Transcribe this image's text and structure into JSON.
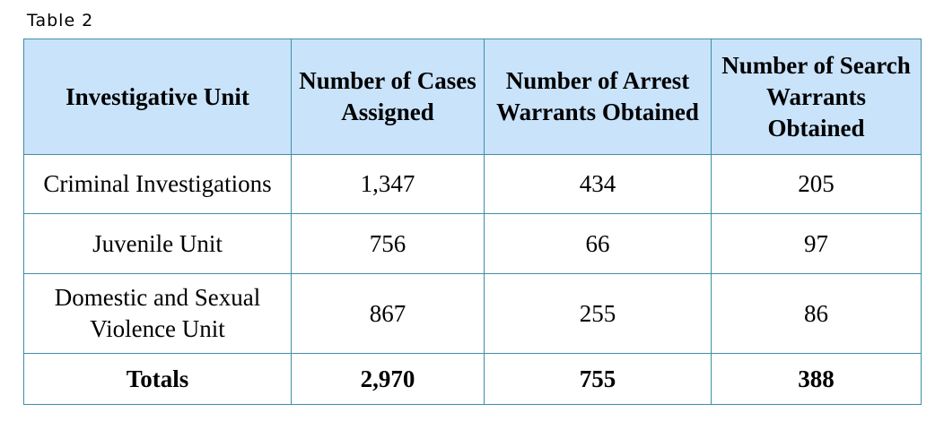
{
  "caption": "Table 2",
  "table": {
    "headers": [
      "Investigative Unit",
      "Number of Cases Assigned",
      "Number of Arrest Warrants Obtained",
      "Number of Search Warrants Obtained"
    ],
    "rows": [
      {
        "unit": "Criminal Investigations",
        "cases": "1,347",
        "arrest": "434",
        "search": "205"
      },
      {
        "unit": "Juvenile Unit",
        "cases": "756",
        "arrest": "66",
        "search": "97"
      },
      {
        "unit": "Domestic and Sexual Violence Unit",
        "cases": "867",
        "arrest": "255",
        "search": "86"
      }
    ],
    "totals": {
      "label": "Totals",
      "cases": "2,970",
      "arrest": "755",
      "search": "388"
    }
  },
  "colors": {
    "header_bg": "#c9e3fb",
    "border": "#3f8fa6"
  }
}
